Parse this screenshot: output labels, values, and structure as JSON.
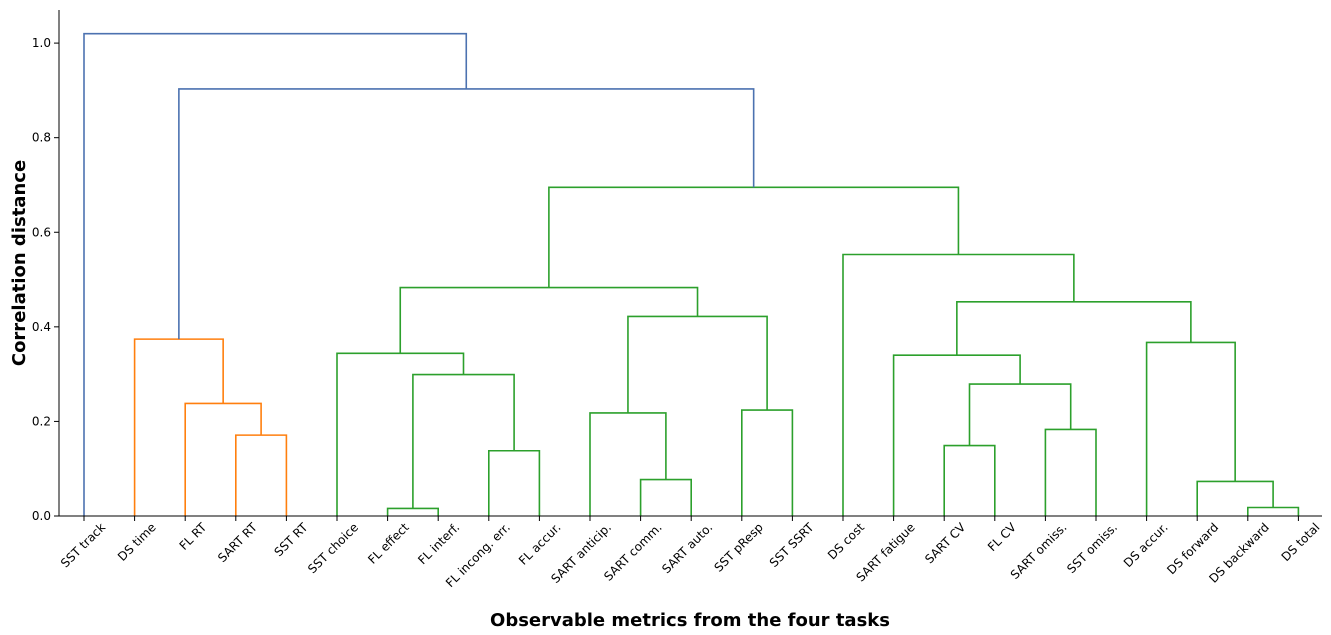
{
  "chart_data": {
    "type": "dendrogram",
    "xlabel": "Observable metrics from the four tasks",
    "ylabel": "Correlation distance",
    "ylim": [
      0,
      1.07
    ],
    "yticks": [
      0.0,
      0.2,
      0.4,
      0.6,
      0.8,
      1.0
    ],
    "ytick_labels": [
      "0.0",
      "0.2",
      "0.4",
      "0.6",
      "0.8",
      "1.0"
    ],
    "grid": false,
    "leaves": [
      "SST track",
      "DS time",
      "FL RT",
      "SART RT",
      "SST RT",
      "SST choice",
      "FL effect",
      "FL interf.",
      "FL incong. err.",
      "FL accur.",
      "SART anticip.",
      "SART comm.",
      "SART auto.",
      "SST pResp",
      "SST SSRT",
      "DS cost",
      "SART fatigue",
      "SART CV",
      "FL CV",
      "SART omiss.",
      "SST omiss.",
      "DS accur.",
      "DS forward",
      "DS backward",
      "DS total"
    ],
    "colors": {
      "orange": "#ff7f0e",
      "green": "#2ca02c",
      "blue": "#4c72b0"
    },
    "merges": [
      {
        "left": "DS backward",
        "right": "DS total",
        "height": 0.018,
        "color": "green"
      },
      {
        "left": "FL effect",
        "right": "FL interf.",
        "height": 0.016,
        "color": "green"
      },
      {
        "left": "DS forward",
        "right": "m0",
        "height": 0.073,
        "color": "green"
      },
      {
        "left": "SART comm.",
        "right": "SART auto.",
        "height": 0.077,
        "color": "green"
      },
      {
        "left": "FL incong. err.",
        "right": "FL accur.",
        "height": 0.138,
        "color": "green"
      },
      {
        "left": "SART CV",
        "right": "FL CV",
        "height": 0.149,
        "color": "green"
      },
      {
        "left": "SART RT",
        "right": "SST RT",
        "height": 0.171,
        "color": "orange"
      },
      {
        "left": "SART omiss.",
        "right": "SST omiss.",
        "height": 0.183,
        "color": "green"
      },
      {
        "left": "SART anticip.",
        "right": "m3",
        "height": 0.218,
        "color": "green"
      },
      {
        "left": "SST pResp",
        "right": "SST SSRT",
        "height": 0.224,
        "color": "green"
      },
      {
        "left": "FL RT",
        "right": "m6",
        "height": 0.238,
        "color": "orange"
      },
      {
        "left": "m5",
        "right": "m7",
        "height": 0.279,
        "color": "green"
      },
      {
        "left": "m1",
        "right": "m4",
        "height": 0.299,
        "color": "green"
      },
      {
        "left": "SART fatigue",
        "right": "m11",
        "height": 0.34,
        "color": "green"
      },
      {
        "left": "SST choice",
        "right": "m12",
        "height": 0.344,
        "color": "green"
      },
      {
        "left": "DS accur.",
        "right": "m2",
        "height": 0.367,
        "color": "green"
      },
      {
        "left": "DS time",
        "right": "m10",
        "height": 0.374,
        "color": "orange"
      },
      {
        "left": "m8",
        "right": "m9",
        "height": 0.422,
        "color": "green"
      },
      {
        "left": "m13",
        "right": "m15",
        "height": 0.453,
        "color": "green"
      },
      {
        "left": "m14",
        "right": "m17",
        "height": 0.483,
        "color": "green"
      },
      {
        "left": "DS cost",
        "right": "m18",
        "height": 0.553,
        "color": "green"
      },
      {
        "left": "m19",
        "right": "m20",
        "height": 0.695,
        "color": "green"
      },
      {
        "left": "m16",
        "right": "m21",
        "height": 0.903,
        "color": "blue"
      },
      {
        "left": "SST track",
        "right": "m22",
        "height": 1.02,
        "color": "blue"
      }
    ]
  }
}
